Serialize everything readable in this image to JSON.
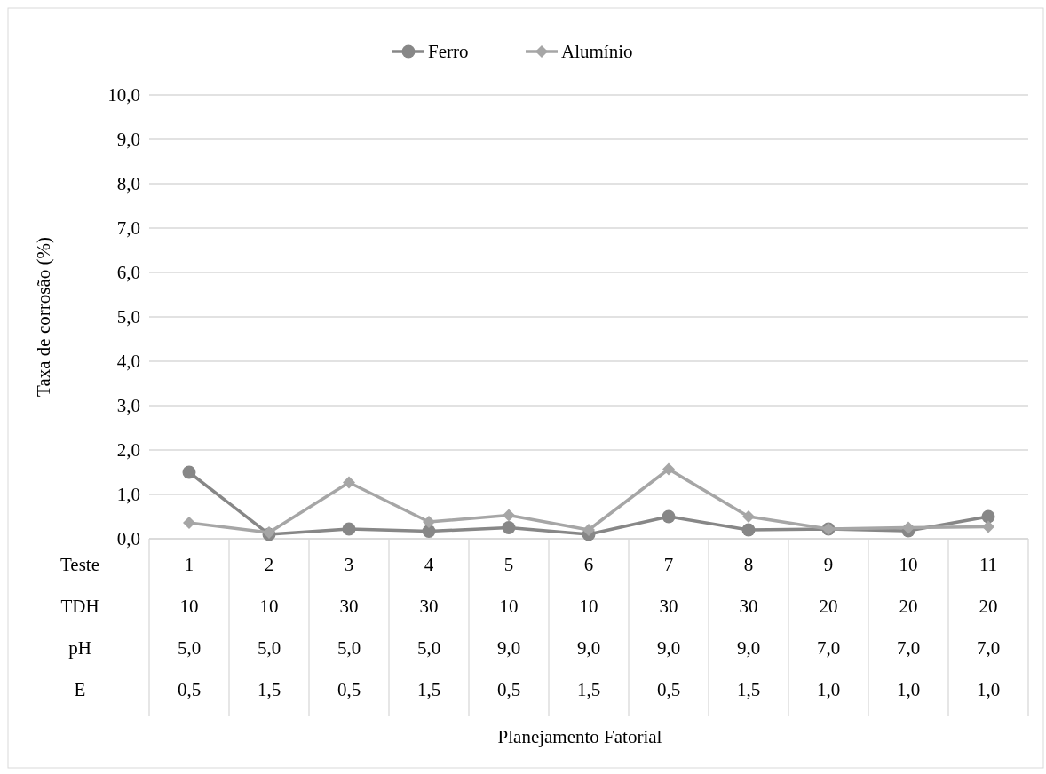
{
  "chart_data": {
    "type": "line",
    "xlabel": "Planejamento Fatorial",
    "ylabel": "Taxa de corrosão (%)",
    "categories": [
      "1\n10\n5,0\n0,5",
      "2\n10\n5,0\n1,5",
      "3\n30\n5,0\n0,5",
      "4\n30\n5,0\n1,5",
      "5\n10\n9,0\n0,5",
      "6\n10\n9,0\n1,5",
      "7\n30\n9,0\n0,5",
      "8\n30\n9,0\n1,5",
      "9\n20\n7,0\n1,0",
      "10\n20\n7,0\n1,0",
      "11\n20\n7,0\n1,0"
    ],
    "annotations": [
      "Teste",
      "TDH",
      "pH",
      "E"
    ],
    "series": [
      {
        "name": "Ferro",
        "color": "#878787",
        "marker": "circle",
        "values": [
          1.5,
          0.1,
          0.22,
          0.17,
          0.25,
          0.1,
          0.5,
          0.2,
          0.22,
          0.18,
          0.5
        ]
      },
      {
        "name": "Alumínio",
        "color": "#a6a6a6",
        "marker": "diamond",
        "values": [
          0.36,
          0.14,
          1.27,
          0.38,
          0.53,
          0.2,
          1.57,
          0.5,
          0.22,
          0.25,
          0.27
        ]
      }
    ],
    "ylim": [
      0,
      10
    ],
    "yticks": [
      {
        "value": 0,
        "label": "0,0"
      },
      {
        "value": 1,
        "label": "1,0"
      },
      {
        "value": 2,
        "label": "2,0"
      },
      {
        "value": 3,
        "label": "3,0"
      },
      {
        "value": 4,
        "label": "4,0"
      },
      {
        "value": 5,
        "label": "5,0"
      },
      {
        "value": 6,
        "label": "6,0"
      },
      {
        "value": 7,
        "label": "7,0"
      },
      {
        "value": 8,
        "label": "8,0"
      },
      {
        "value": 9,
        "label": "9,0"
      },
      {
        "value": 10,
        "label": "10,0"
      }
    ],
    "grid": "y",
    "legend": "top",
    "line_style": "solid"
  }
}
